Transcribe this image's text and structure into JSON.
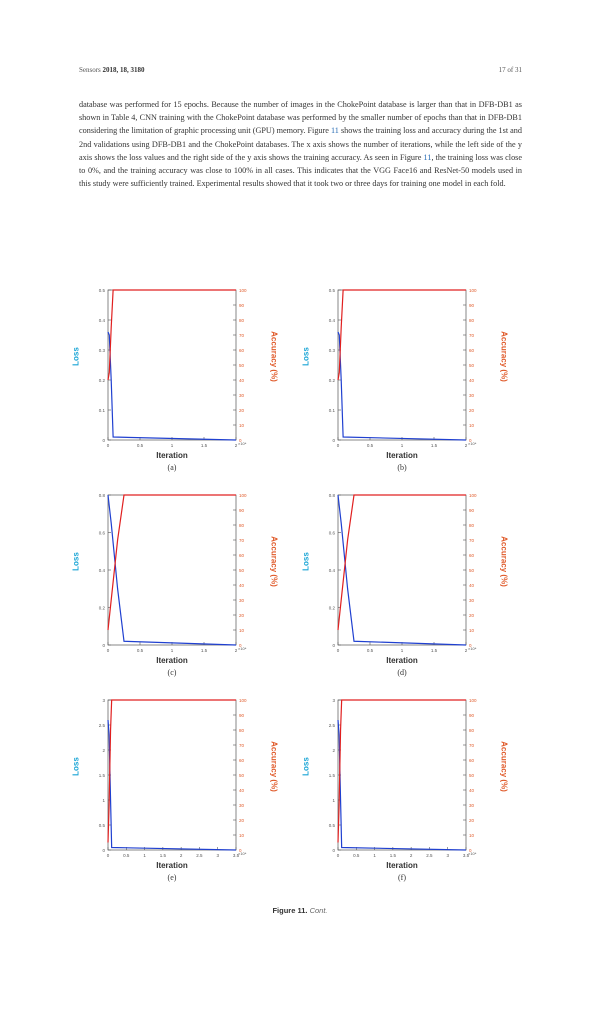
{
  "header": {
    "journal": "Sensors",
    "year_vol": "2018, 18, 3180",
    "page": "17 of 31"
  },
  "paragraph": {
    "t1": "database was performed for 15 epochs. Because the number of images in the ChokePoint database is larger than that in DFB-DB1 as shown in Table 4, CNN training with the ChokePoint database was performed by the smaller number of epochs than that in DFB-DB1 considering the limitation of graphic processing unit (GPU) memory. Figure ",
    "ref1": "11",
    "t2": " shows the training loss and accuracy during the 1st and 2nd validations using DFB-DB1 and the ChokePoint databases. The x axis shows the number of iterations, while the left side of the y axis shows the loss values and the right side of the y axis shows the training accuracy. As seen in Figure ",
    "ref2": "11",
    "t3": ", the training loss was close to 0%, and the training accuracy was close to 100% in all cases. This indicates that the VGG Face16 and ResNet-50 models used in this study were sufficiently trained. Experimental results showed that it took two or three days for training one model in each fold."
  },
  "panel_texts": {
    "loss_label": "Loss",
    "accuracy_label": "Accuracy (%)",
    "iteration_label": "Iteration",
    "exponent": "×10⁴"
  },
  "panels": [
    {
      "sub": "(a)",
      "loss_ticks": [
        "0.5",
        "0.4",
        "0.3",
        "0.2",
        "0.1",
        "0"
      ],
      "acc_ticks": [
        "100",
        "90",
        "80",
        "70",
        "60",
        "50",
        "40",
        "30",
        "20",
        "10",
        "0"
      ],
      "x_ticks": [
        "0",
        "0.5",
        "1",
        "1.5",
        "2"
      ]
    },
    {
      "sub": "(b)",
      "loss_ticks": [
        "0.5",
        "0.4",
        "0.3",
        "0.2",
        "0.1",
        "0"
      ],
      "acc_ticks": [
        "100",
        "90",
        "80",
        "70",
        "60",
        "50",
        "40",
        "30",
        "20",
        "10",
        "0"
      ],
      "x_ticks": [
        "0",
        "0.5",
        "1",
        "1.5",
        "2"
      ]
    },
    {
      "sub": "(c)",
      "loss_ticks": [
        "0.8",
        "0.6",
        "0.4",
        "0.2",
        "0"
      ],
      "acc_ticks": [
        "100",
        "90",
        "80",
        "70",
        "60",
        "50",
        "40",
        "30",
        "20",
        "10",
        "0"
      ],
      "x_ticks": [
        "0",
        "0.5",
        "1",
        "1.5",
        "2"
      ]
    },
    {
      "sub": "(d)",
      "loss_ticks": [
        "0.8",
        "0.6",
        "0.4",
        "0.2",
        "0"
      ],
      "acc_ticks": [
        "100",
        "90",
        "80",
        "70",
        "60",
        "50",
        "40",
        "30",
        "20",
        "10",
        "0"
      ],
      "x_ticks": [
        "0",
        "0.5",
        "1",
        "1.5",
        "2"
      ]
    },
    {
      "sub": "(e)",
      "loss_ticks": [
        "3",
        "2.5",
        "2",
        "1.5",
        "1",
        "0.5",
        "0"
      ],
      "acc_ticks": [
        "100",
        "90",
        "80",
        "70",
        "60",
        "50",
        "40",
        "30",
        "20",
        "10",
        "0"
      ],
      "x_ticks": [
        "0",
        "0.5",
        "1",
        "1.5",
        "2",
        "2.5",
        "3",
        "3.5"
      ]
    },
    {
      "sub": "(f)",
      "loss_ticks": [
        "3",
        "2.5",
        "2",
        "1.5",
        "1",
        "0.5",
        "0"
      ],
      "acc_ticks": [
        "100",
        "90",
        "80",
        "70",
        "60",
        "50",
        "40",
        "30",
        "20",
        "10",
        "0"
      ],
      "x_ticks": [
        "0",
        "0.5",
        "1",
        "1.5",
        "2",
        "2.5",
        "3",
        "3.5"
      ]
    }
  ],
  "caption": {
    "label": "Figure 11.",
    "text": "Cont."
  },
  "chart_data": [
    {
      "type": "line",
      "x": [
        0,
        0.02,
        0.05,
        0.08,
        2
      ],
      "series": [
        {
          "name": "Loss",
          "axis": "left",
          "color": "#2040d0",
          "values": [
            0.36,
            0.35,
            0.2,
            0.01,
            0.0
          ]
        },
        {
          "name": "Accuracy (%)",
          "axis": "right",
          "color": "#e02020",
          "values": [
            40,
            45,
            75,
            100,
            100
          ]
        }
      ],
      "xlabel": "Iteration",
      "ylabel": "Loss",
      "y2label": "Accuracy (%)",
      "xlim": [
        0,
        2
      ],
      "ylim": [
        0,
        0.5
      ],
      "y2lim": [
        0,
        100
      ]
    },
    {
      "type": "line",
      "x": [
        0,
        0.02,
        0.05,
        0.08,
        2
      ],
      "series": [
        {
          "name": "Loss",
          "axis": "left",
          "color": "#2040d0",
          "values": [
            0.36,
            0.35,
            0.2,
            0.01,
            0.0
          ]
        },
        {
          "name": "Accuracy (%)",
          "axis": "right",
          "color": "#e02020",
          "values": [
            40,
            45,
            75,
            100,
            100
          ]
        }
      ],
      "xlabel": "Iteration",
      "ylabel": "Loss",
      "y2label": "Accuracy (%)",
      "xlim": [
        0,
        2
      ],
      "ylim": [
        0,
        0.5
      ],
      "y2lim": [
        0,
        100
      ]
    },
    {
      "type": "line",
      "x": [
        0,
        0.05,
        0.15,
        0.25,
        2
      ],
      "series": [
        {
          "name": "Loss",
          "axis": "left",
          "color": "#2040d0",
          "values": [
            0.8,
            0.65,
            0.3,
            0.02,
            0.0
          ]
        },
        {
          "name": "Accuracy (%)",
          "axis": "right",
          "color": "#e02020",
          "values": [
            10,
            30,
            70,
            100,
            100
          ]
        }
      ],
      "xlabel": "Iteration",
      "ylabel": "Loss",
      "y2label": "Accuracy (%)",
      "xlim": [
        0,
        2
      ],
      "ylim": [
        0,
        0.8
      ],
      "y2lim": [
        0,
        100
      ]
    },
    {
      "type": "line",
      "x": [
        0,
        0.05,
        0.15,
        0.25,
        2
      ],
      "series": [
        {
          "name": "Loss",
          "axis": "left",
          "color": "#2040d0",
          "values": [
            0.8,
            0.65,
            0.3,
            0.02,
            0.0
          ]
        },
        {
          "name": "Accuracy (%)",
          "axis": "right",
          "color": "#e02020",
          "values": [
            10,
            30,
            70,
            100,
            100
          ]
        }
      ],
      "xlabel": "Iteration",
      "ylabel": "Loss",
      "y2label": "Accuracy (%)",
      "xlim": [
        0,
        2
      ],
      "ylim": [
        0,
        0.8
      ],
      "y2lim": [
        0,
        100
      ]
    },
    {
      "type": "line",
      "x": [
        0,
        0.03,
        0.07,
        0.1,
        3.5
      ],
      "series": [
        {
          "name": "Loss",
          "axis": "left",
          "color": "#2040d0",
          "values": [
            2.6,
            2.3,
            1.0,
            0.05,
            0.0
          ]
        },
        {
          "name": "Accuracy (%)",
          "axis": "right",
          "color": "#e02020",
          "values": [
            5,
            30,
            80,
            100,
            100
          ]
        }
      ],
      "xlabel": "Iteration",
      "ylabel": "Loss",
      "y2label": "Accuracy (%)",
      "xlim": [
        0,
        3.5
      ],
      "ylim": [
        0,
        3
      ],
      "y2lim": [
        0,
        100
      ]
    },
    {
      "type": "line",
      "x": [
        0,
        0.03,
        0.07,
        0.1,
        3.5
      ],
      "series": [
        {
          "name": "Loss",
          "axis": "left",
          "color": "#2040d0",
          "values": [
            2.6,
            2.3,
            1.0,
            0.05,
            0.0
          ]
        },
        {
          "name": "Accuracy (%)",
          "axis": "right",
          "color": "#e02020",
          "values": [
            5,
            30,
            80,
            100,
            100
          ]
        }
      ],
      "xlabel": "Iteration",
      "ylabel": "Loss",
      "y2label": "Accuracy (%)",
      "xlim": [
        0,
        3.5
      ],
      "ylim": [
        0,
        3
      ],
      "y2lim": [
        0,
        100
      ]
    }
  ]
}
